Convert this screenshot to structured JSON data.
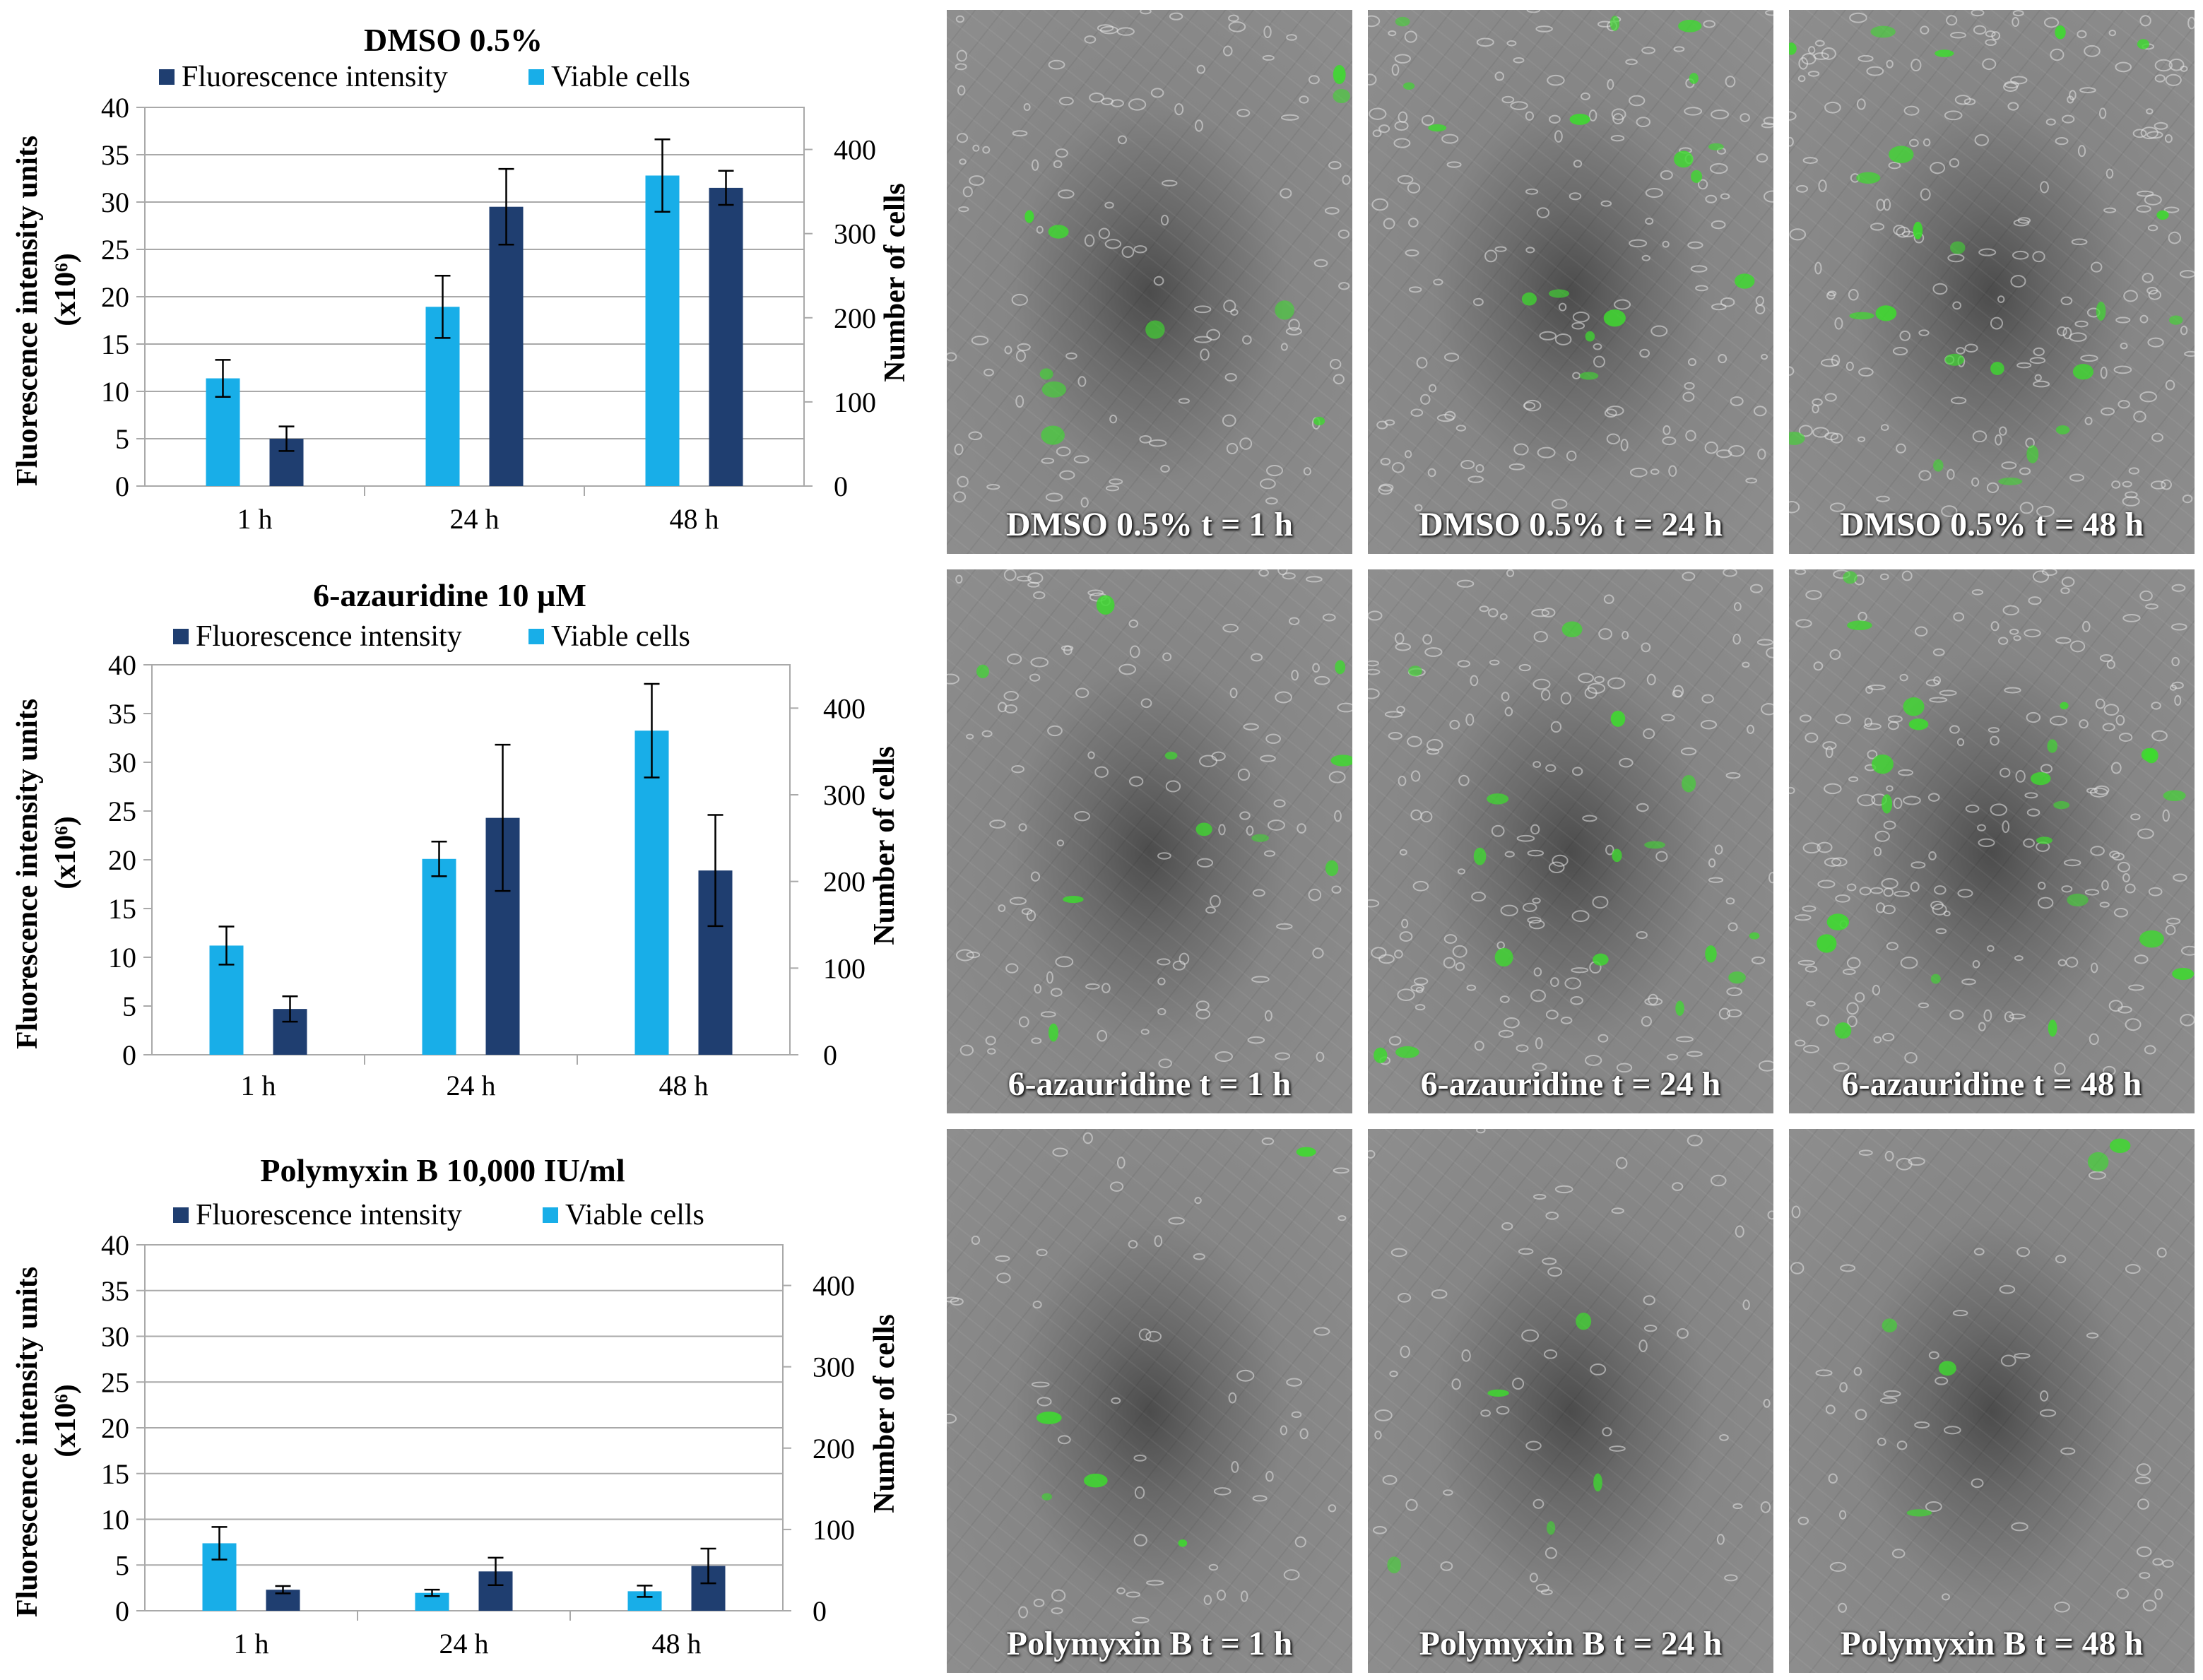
{
  "chart_data": [
    {
      "type": "bar",
      "title": "DMSO 0.5%",
      "categories": [
        "1 h",
        "24 h",
        "48 h"
      ],
      "ylabel_left": "Fluorescence intensity units",
      "ylabel_left_unit": "(x10⁶)",
      "ylabel_right": "Number of cells",
      "ylim_left": [
        0,
        40
      ],
      "ylim_right": [
        0,
        450
      ],
      "yticks_left": [
        "0",
        "5",
        "10",
        "15",
        "20",
        "25",
        "30",
        "35",
        "40"
      ],
      "yticks_right": [
        "0",
        "100",
        "200",
        "300",
        "400"
      ],
      "legend": [
        "Fluorescence intensity",
        "Viable cells"
      ],
      "legend_position": "top",
      "grid": true,
      "series": [
        {
          "name": "Viable cells",
          "axis": "right",
          "color": "#18AEE8",
          "values": [
            128,
            213,
            369
          ],
          "errors": [
            22,
            37,
            43
          ]
        },
        {
          "name": "Fluorescence intensity",
          "axis": "left",
          "color": "#1F3E70",
          "values": [
            5,
            29.5,
            31.5
          ],
          "errors": [
            1.3,
            4.0,
            1.8
          ]
        }
      ]
    },
    {
      "type": "bar",
      "title": "6-azauridine  10 µM",
      "categories": [
        "1 h",
        "24 h",
        "48 h"
      ],
      "ylabel_left": "Fluorescence intensity units",
      "ylabel_left_unit": "(x10⁶)",
      "ylabel_right": "Number of cells",
      "ylim_left": [
        0,
        40
      ],
      "ylim_right": [
        0,
        450
      ],
      "yticks_left": [
        "0",
        "5",
        "10",
        "15",
        "20",
        "25",
        "30",
        "35",
        "40"
      ],
      "yticks_right": [
        "0",
        "100",
        "200",
        "300",
        "400"
      ],
      "legend": [
        "Fluorescence intensity",
        "Viable cells"
      ],
      "legend_position": "top",
      "grid": false,
      "series": [
        {
          "name": "Viable cells",
          "axis": "right",
          "color": "#18AEE8",
          "values": [
            126,
            226,
            374
          ],
          "errors": [
            22,
            20,
            54
          ]
        },
        {
          "name": "Fluorescence intensity",
          "axis": "left",
          "color": "#1F3E70",
          "values": [
            4.7,
            24.3,
            18.9
          ],
          "errors": [
            1.3,
            7.5,
            5.7
          ]
        }
      ]
    },
    {
      "type": "bar",
      "title": "Polymyxin  B  10,000 IU/ml",
      "categories": [
        "1 h",
        "24 h",
        "48 h"
      ],
      "ylabel_left": "Fluorescence intensity units",
      "ylabel_left_unit": "(x10⁶)",
      "ylabel_right": "Number of cells",
      "ylim_left": [
        0,
        40
      ],
      "ylim_right": [
        0,
        450
      ],
      "yticks_left": [
        "0",
        "5",
        "10",
        "15",
        "20",
        "25",
        "30",
        "35",
        "40"
      ],
      "yticks_right": [
        "0",
        "100",
        "200",
        "300",
        "400"
      ],
      "legend": [
        "Fluorescence intensity",
        "Viable cells"
      ],
      "legend_position": "top",
      "grid": true,
      "series": [
        {
          "name": "Viable cells",
          "axis": "right",
          "color": "#18AEE8",
          "values": [
            83,
            22,
            24
          ],
          "errors": [
            20,
            4,
            7
          ]
        },
        {
          "name": "Fluorescence intensity",
          "axis": "left",
          "color": "#1F3E70",
          "values": [
            2.3,
            4.3,
            4.9
          ],
          "errors": [
            0.4,
            1.5,
            1.9
          ]
        }
      ]
    }
  ],
  "micrographs": [
    {
      "caption": "DMSO  0.5% t = 1 h"
    },
    {
      "caption": "DMSO  0.5% t = 24 h"
    },
    {
      "caption": "DMSO  0.5% t = 48 h"
    },
    {
      "caption": "6-azauridine  t = 1 h"
    },
    {
      "caption": "6-azauridine  t = 24 h"
    },
    {
      "caption": "6-azauridine  t = 48 h"
    },
    {
      "caption": "Polymyxin  B t = 1 h"
    },
    {
      "caption": "Polymyxin  B t = 24 h"
    },
    {
      "caption": "Polymyxin  B t = 48 h"
    }
  ],
  "colors": {
    "viable_cells": "#18AEE8",
    "fluorescence": "#1F3E70",
    "micrograph_signal": "#3DDB2E"
  }
}
